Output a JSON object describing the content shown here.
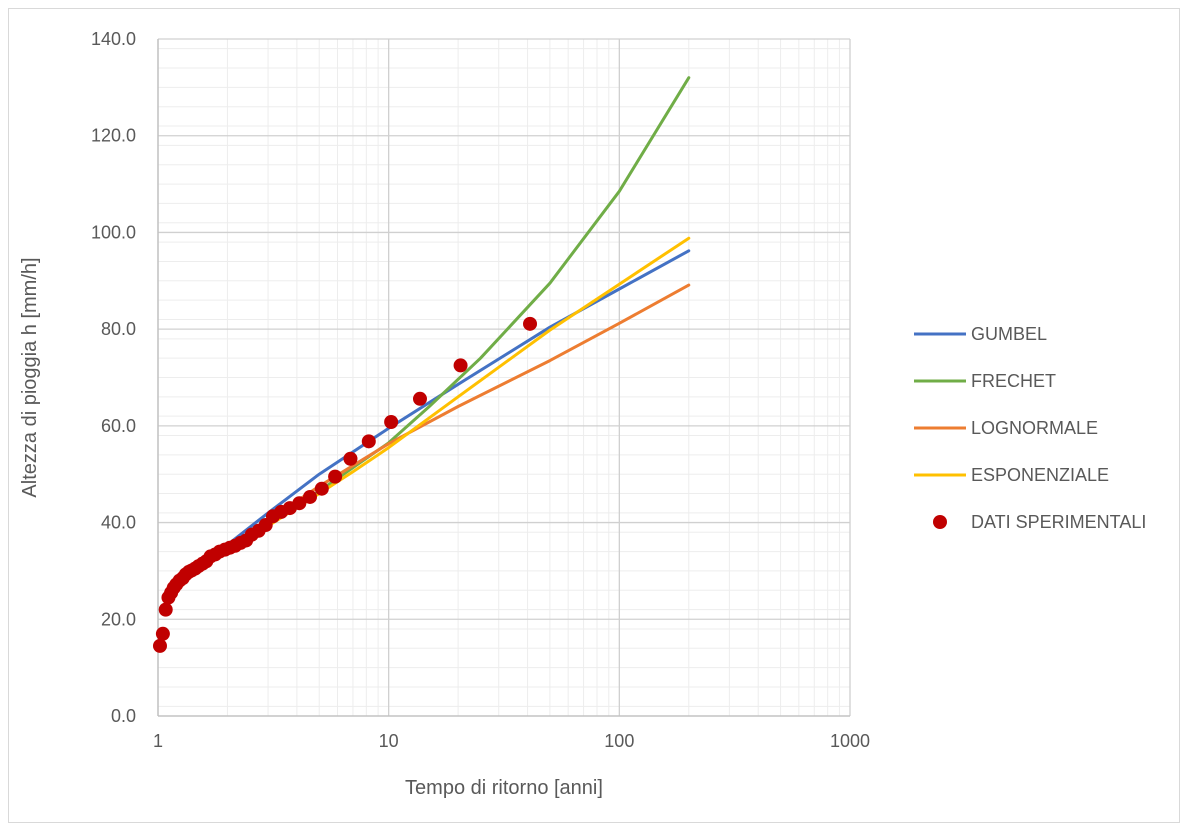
{
  "chart_data": {
    "type": "line",
    "title": "",
    "xlabel": "Tempo di ritorno [anni]",
    "ylabel": "Altezza di pioggia h [mm/h]",
    "x_scale": "log",
    "xlim": [
      1,
      1000
    ],
    "ylim": [
      0,
      140
    ],
    "x_ticks": [
      "1",
      "10",
      "100",
      "1000"
    ],
    "y_ticks": [
      "0.0",
      "20.0",
      "40.0",
      "60.0",
      "80.0",
      "100.0",
      "120.0",
      "140.0"
    ],
    "grid": true,
    "legend_position": "right",
    "series": [
      {
        "name": "GUMBEL",
        "kind": "line",
        "color": "#4472c4",
        "x": [
          1.5,
          2,
          3,
          5,
          10,
          20,
          50,
          100,
          200
        ],
        "y": [
          30.5,
          35.4,
          42.0,
          50.0,
          59.5,
          68.6,
          80.4,
          88.3,
          96.2
        ]
      },
      {
        "name": "FRECHET",
        "kind": "line",
        "color": "#70ad47",
        "x": [
          2,
          3,
          5,
          10,
          15,
          25,
          50,
          100,
          200
        ],
        "y": [
          34.3,
          39.5,
          46.5,
          56.5,
          64.0,
          74.0,
          89.5,
          108.5,
          132.0
        ]
      },
      {
        "name": "LOGNORMALE",
        "kind": "line",
        "color": "#ed7d31",
        "x": [
          1.5,
          2,
          3,
          5,
          10,
          20,
          50,
          100,
          200
        ],
        "y": [
          30.8,
          34.7,
          40.5,
          47.5,
          56.3,
          64.0,
          73.5,
          81.2,
          89.1
        ]
      },
      {
        "name": "ESPONENZIALE",
        "kind": "line",
        "color": "#ffc000",
        "x": [
          2,
          3,
          5,
          7,
          10,
          20,
          50,
          100,
          200
        ],
        "y": [
          33.5,
          39.3,
          46.0,
          50.5,
          55.5,
          66.0,
          79.8,
          89.3,
          98.8
        ]
      },
      {
        "name": "DATI SPERIMENTALI",
        "kind": "scatter",
        "color": "#c00000",
        "x": [
          1.02,
          1.05,
          1.08,
          1.11,
          1.14,
          1.17,
          1.2,
          1.24,
          1.28,
          1.32,
          1.36,
          1.4,
          1.45,
          1.5,
          1.56,
          1.62,
          1.69,
          1.77,
          1.85,
          1.95,
          2.05,
          2.16,
          2.28,
          2.41,
          2.55,
          2.73,
          2.93,
          3.15,
          3.42,
          3.73,
          4.1,
          4.56,
          5.13,
          5.86,
          6.83,
          8.2,
          10.25,
          13.67,
          20.5,
          41.0
        ],
        "y": [
          14.5,
          17.0,
          22.0,
          24.5,
          25.5,
          26.5,
          27.2,
          28.0,
          28.5,
          29.3,
          29.8,
          30.1,
          30.5,
          31.0,
          31.5,
          32.0,
          33.0,
          33.4,
          34.0,
          34.4,
          34.8,
          35.2,
          35.8,
          36.3,
          37.5,
          38.3,
          39.5,
          41.3,
          42.2,
          43.0,
          44.0,
          45.3,
          47.0,
          49.5,
          53.2,
          56.8,
          60.8,
          65.6,
          72.5,
          81.1
        ]
      }
    ]
  }
}
